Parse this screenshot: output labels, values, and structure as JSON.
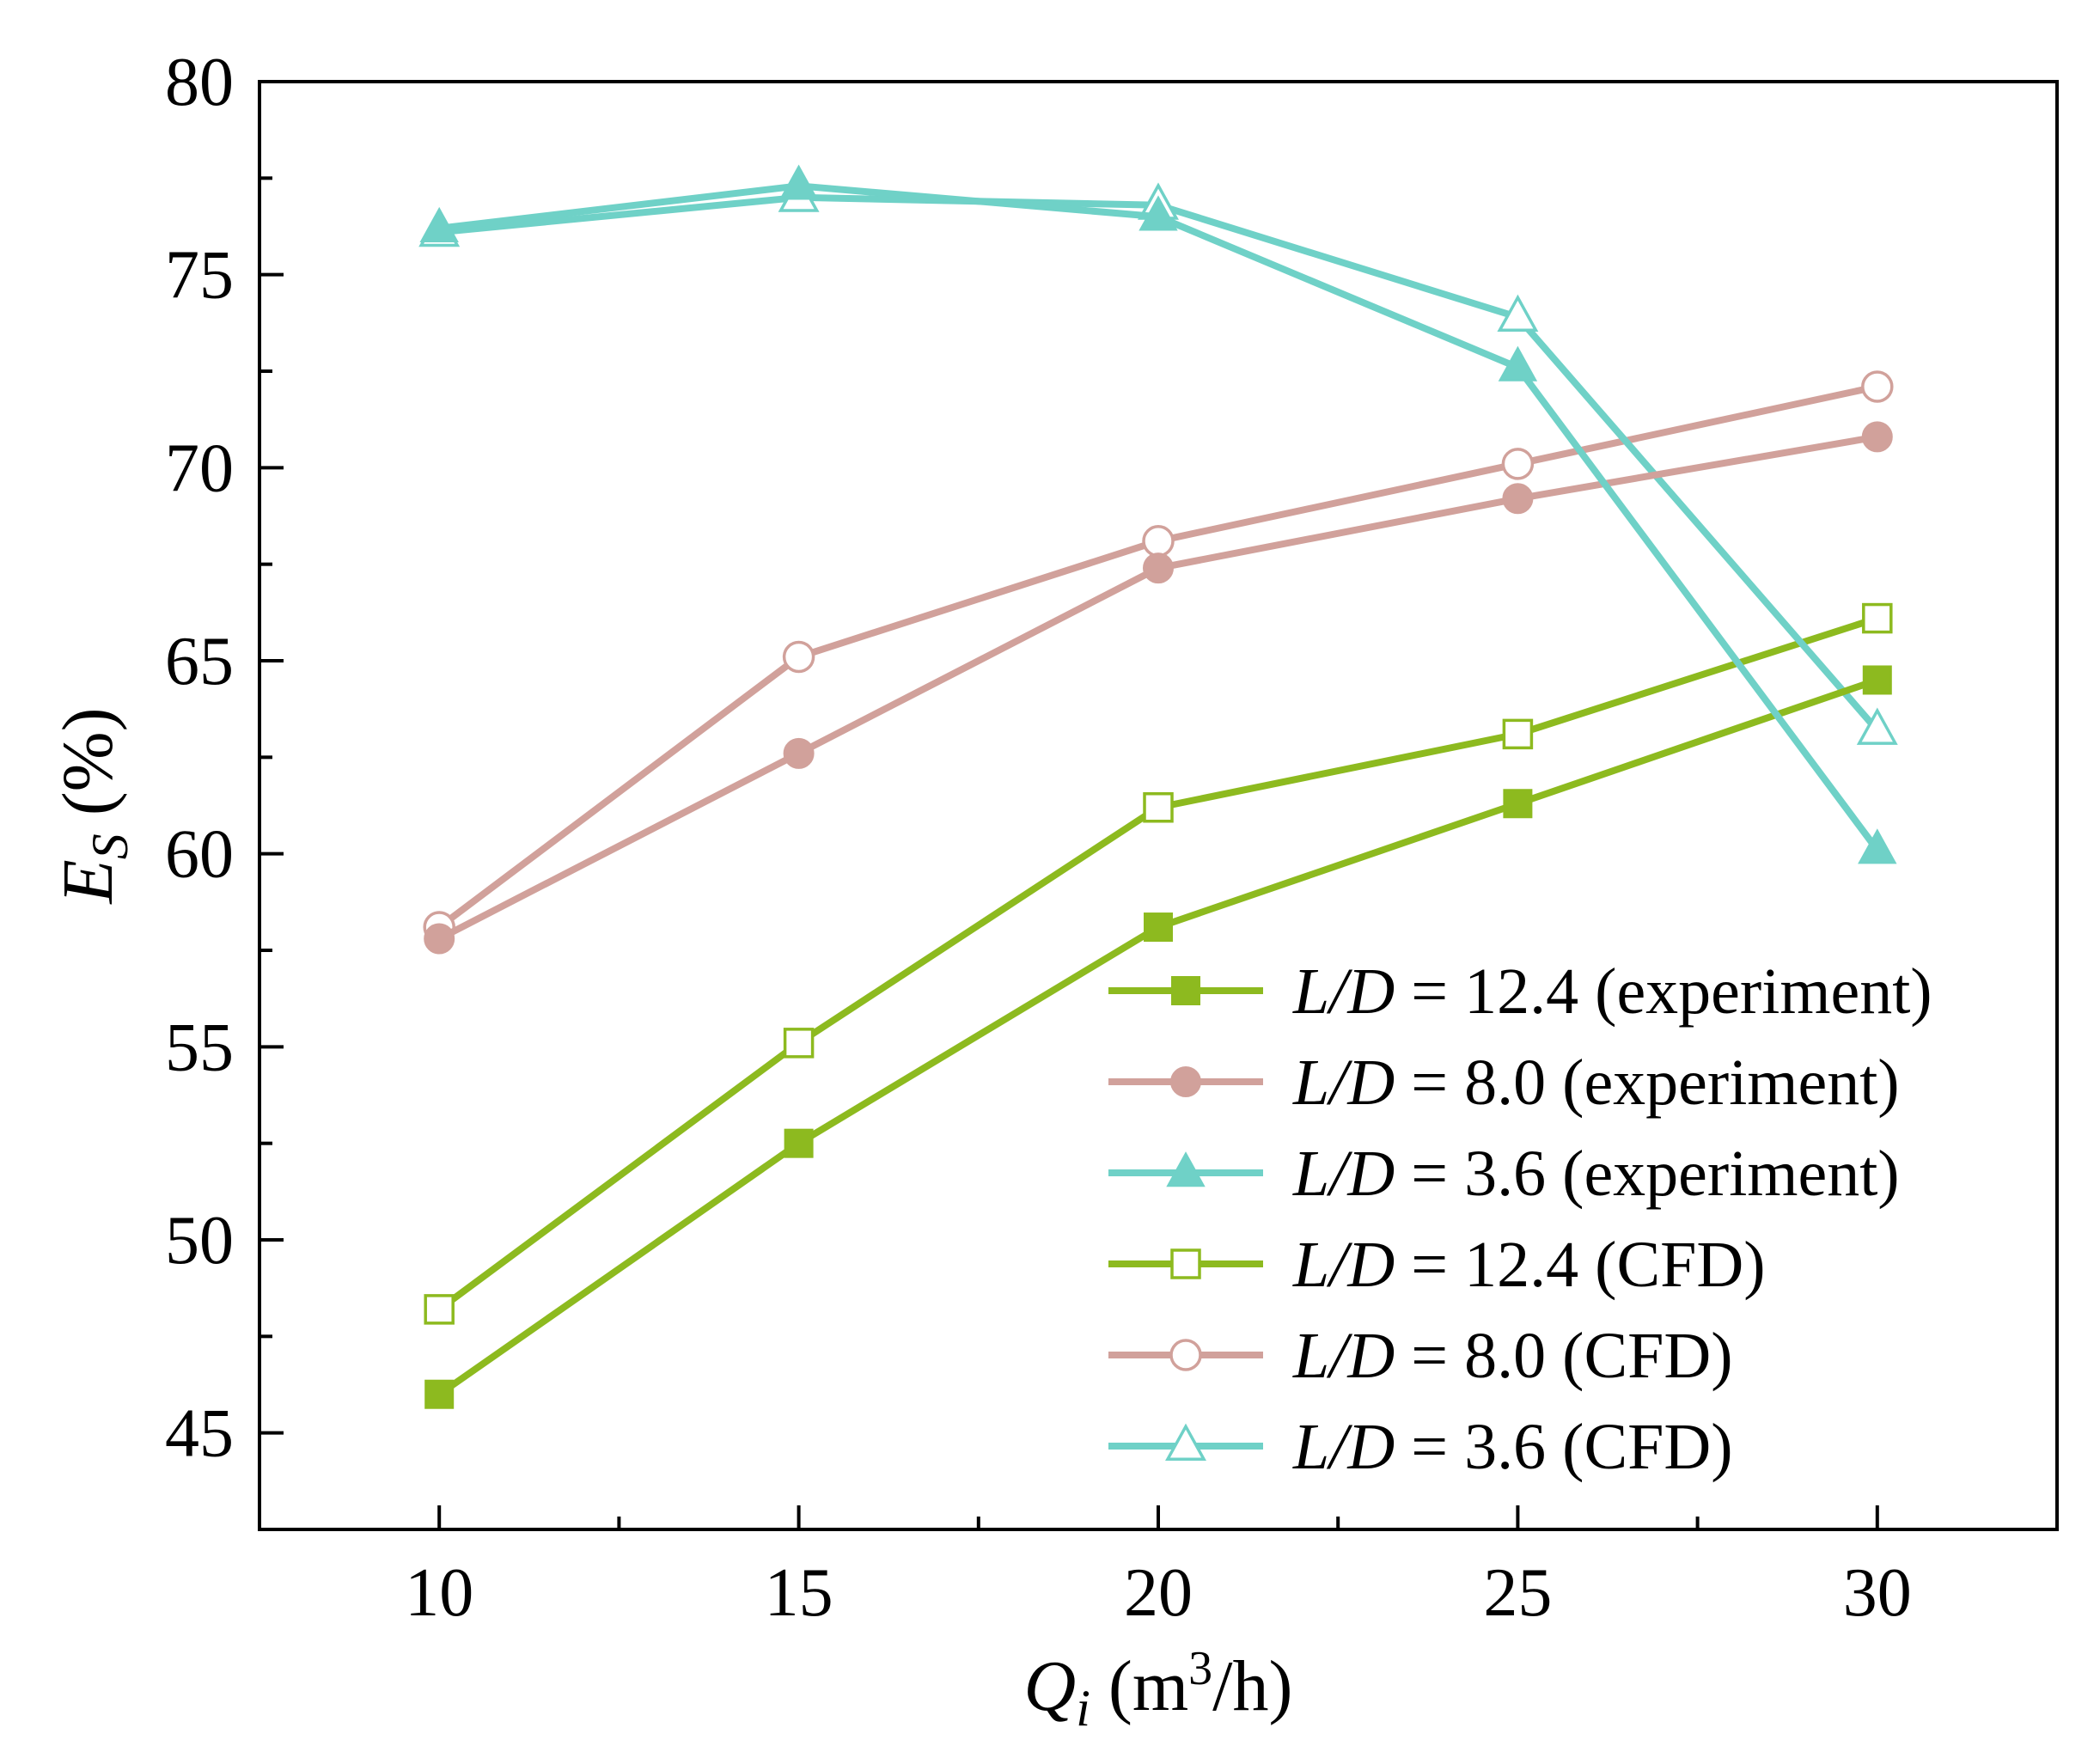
{
  "chart_data": {
    "type": "line",
    "title": "",
    "xlabel": {
      "var": "Q",
      "sub": "i",
      "unit_pre": " (m",
      "unit_sup": "3",
      "unit_post": "/h)"
    },
    "ylabel": {
      "var": "E",
      "sub": "S",
      "unit": " (%)"
    },
    "xlim": [
      7.5,
      32.5
    ],
    "ylim": [
      42.5,
      80
    ],
    "x": [
      10,
      15,
      20,
      25,
      30
    ],
    "x_ticks": [
      10,
      15,
      20,
      25,
      30
    ],
    "x_tick_labels": [
      "10",
      "15",
      "20",
      "25",
      "30"
    ],
    "y_ticks": [
      45,
      50,
      55,
      60,
      65,
      70,
      75,
      80
    ],
    "y_tick_labels": [
      "45",
      "50",
      "55",
      "60",
      "65",
      "70",
      "75",
      "80"
    ],
    "grid": false,
    "legend_position": "bottom-right",
    "series": [
      {
        "name": "L/D = 12.4 (experiment)",
        "ld": "L/D",
        "eq": " = 12.4 (experiment)",
        "color": "#8dba1f",
        "marker": "square",
        "filled": true,
        "values": [
          46.0,
          52.5,
          58.1,
          61.3,
          64.5
        ]
      },
      {
        "name": "L/D = 8.0 (experiment)",
        "ld": "L/D",
        "eq": " = 8.0 (experiment)",
        "color": "#d1a19b",
        "marker": "circle",
        "filled": true,
        "values": [
          57.8,
          62.6,
          67.4,
          69.2,
          70.8
        ]
      },
      {
        "name": "L/D = 3.6 (experiment)",
        "ld": "L/D",
        "eq": " = 3.6 (experiment)",
        "color": "#6fd1c7",
        "marker": "triangle",
        "filled": true,
        "values": [
          76.2,
          77.3,
          76.5,
          72.6,
          60.1
        ]
      },
      {
        "name": "L/D = 12.4 (CFD)",
        "ld": "L/D",
        "eq": " = 12.4 (CFD)",
        "color": "#8dba1f",
        "marker": "square",
        "filled": false,
        "values": [
          48.2,
          55.1,
          61.2,
          63.1,
          66.1
        ]
      },
      {
        "name": "L/D = 8.0 (CFD)",
        "ld": "L/D",
        "eq": " = 8.0 (CFD)",
        "color": "#d1a19b",
        "marker": "circle",
        "filled": false,
        "values": [
          58.1,
          65.1,
          68.1,
          70.1,
          72.1
        ]
      },
      {
        "name": "L/D = 3.6 (CFD)",
        "ld": "L/D",
        "eq": " = 3.6 (CFD)",
        "color": "#6fd1c7",
        "marker": "triangle",
        "filled": false,
        "values": [
          76.1,
          77.0,
          76.8,
          73.9,
          63.2
        ]
      }
    ]
  }
}
